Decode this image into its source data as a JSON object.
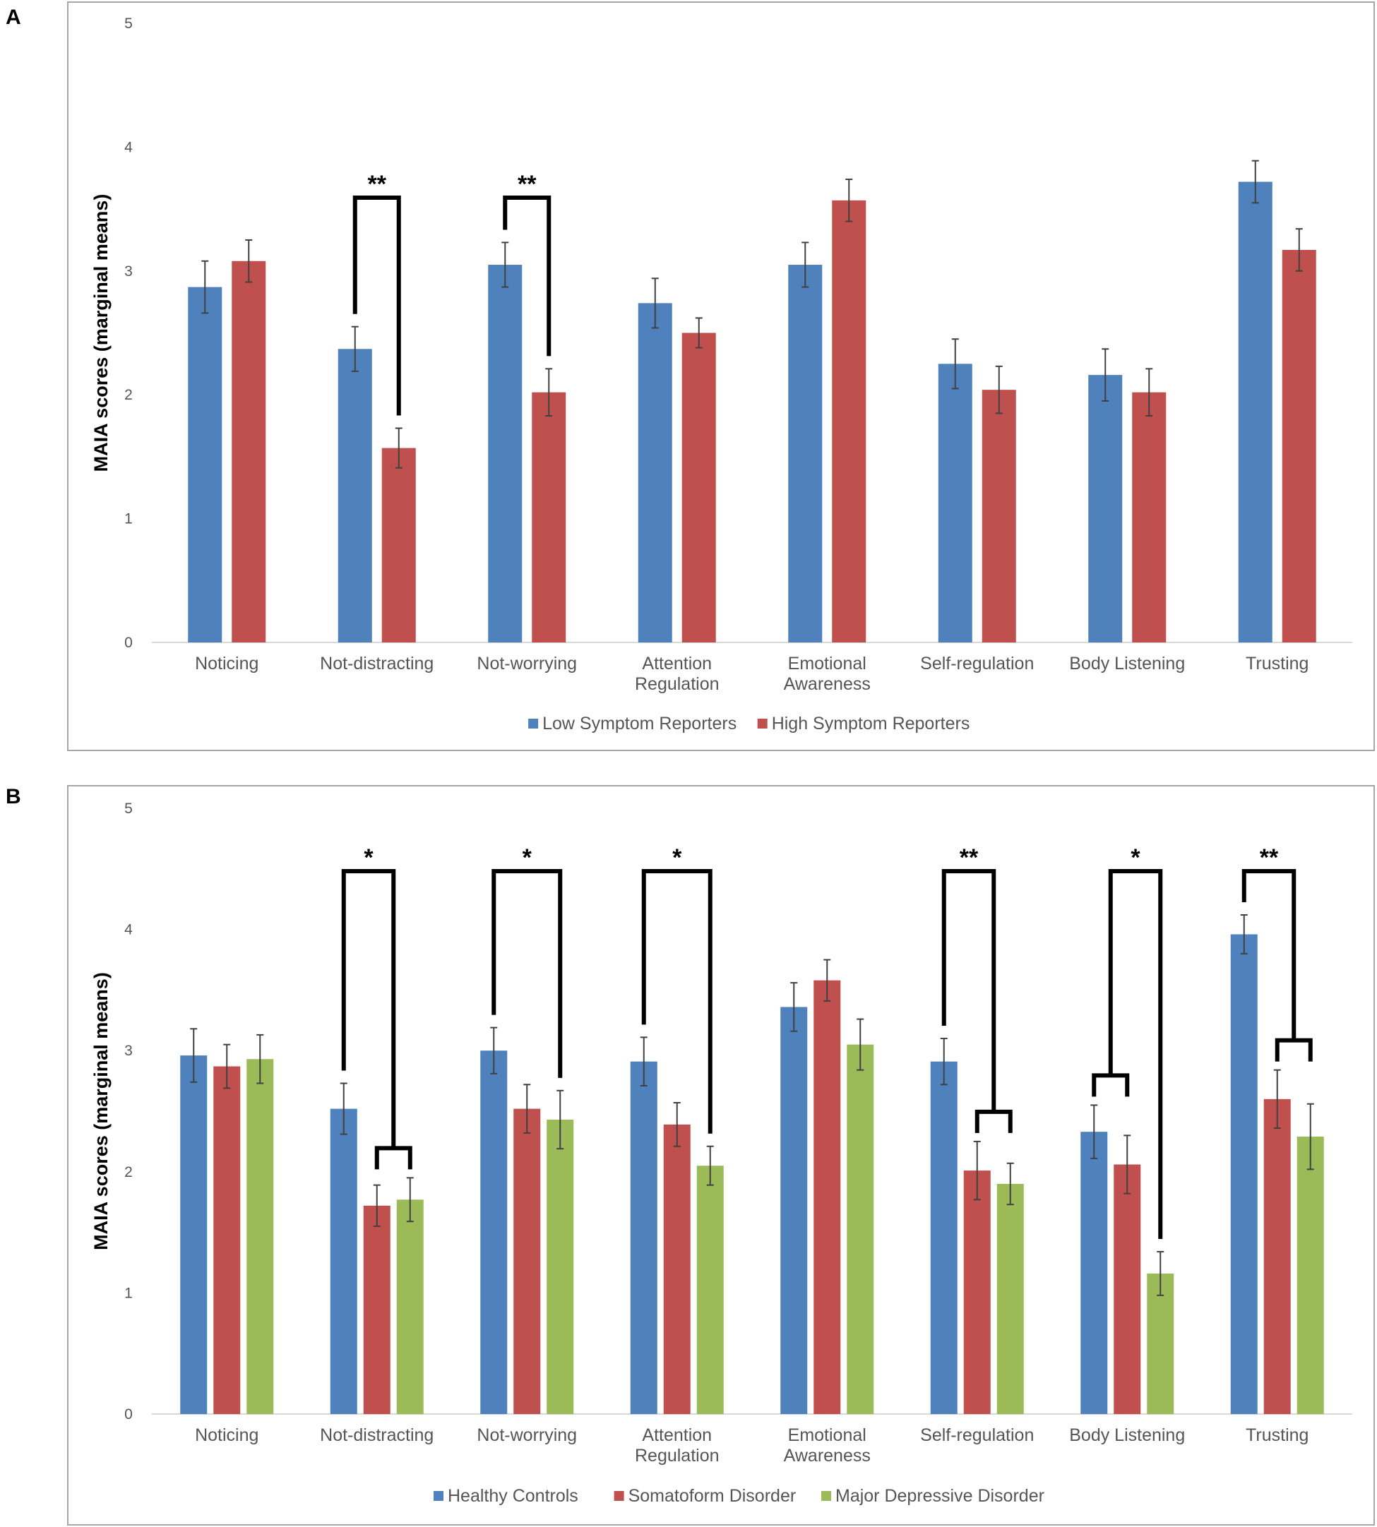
{
  "panels": [
    {
      "label": "A",
      "chart_data": {
        "type": "bar",
        "ylabel": "MAIA scores (marginal means)",
        "ylim": [
          0,
          5
        ],
        "yticks": [
          0,
          1,
          2,
          3,
          4,
          5
        ],
        "categories": [
          [
            "Noticing"
          ],
          [
            "Not-distracting"
          ],
          [
            "Not-worrying"
          ],
          [
            "Attention",
            "Regulation"
          ],
          [
            "Emotional",
            "Awareness"
          ],
          [
            "Self-regulation"
          ],
          [
            "Body Listening"
          ],
          [
            "Trusting"
          ]
        ],
        "series": [
          {
            "name": "Low Symptom Reporters",
            "color": "#4f81bd",
            "values": [
              2.87,
              2.37,
              3.05,
              2.74,
              3.05,
              2.25,
              2.16,
              3.72
            ],
            "errors": [
              0.21,
              0.18,
              0.18,
              0.2,
              0.18,
              0.2,
              0.21,
              0.17
            ]
          },
          {
            "name": "High Symptom Reporters",
            "color": "#c0504d",
            "values": [
              3.08,
              1.57,
              2.02,
              2.5,
              3.57,
              2.04,
              2.02,
              3.17
            ],
            "errors": [
              0.17,
              0.16,
              0.19,
              0.12,
              0.17,
              0.19,
              0.19,
              0.17
            ]
          }
        ],
        "annotations": [
          {
            "category": 1,
            "label": "**",
            "from": 0,
            "to": 1
          },
          {
            "category": 2,
            "label": "**",
            "from": 0,
            "to": 1
          }
        ]
      }
    },
    {
      "label": "B",
      "chart_data": {
        "type": "bar",
        "ylabel": "MAIA scores (marginal means)",
        "ylim": [
          0,
          5
        ],
        "yticks": [
          0,
          1,
          2,
          3,
          4,
          5
        ],
        "categories": [
          [
            "Noticing"
          ],
          [
            "Not-distracting"
          ],
          [
            "Not-worrying"
          ],
          [
            "Attention",
            "Regulation"
          ],
          [
            "Emotional",
            "Awareness"
          ],
          [
            "Self-regulation"
          ],
          [
            "Body Listening"
          ],
          [
            "Trusting"
          ]
        ],
        "series": [
          {
            "name": "Healthy Controls",
            "color": "#4f81bd",
            "values": [
              2.96,
              2.52,
              3.0,
              2.91,
              3.36,
              2.91,
              2.33,
              3.96
            ],
            "errors": [
              0.22,
              0.21,
              0.19,
              0.2,
              0.2,
              0.19,
              0.22,
              0.16
            ]
          },
          {
            "name": "Somatoform Disorder",
            "color": "#c0504d",
            "values": [
              2.87,
              1.72,
              2.52,
              2.39,
              3.58,
              2.01,
              2.06,
              2.6
            ],
            "errors": [
              0.18,
              0.17,
              0.2,
              0.18,
              0.17,
              0.24,
              0.24,
              0.24
            ]
          },
          {
            "name": "Major Depressive Disorder",
            "color": "#9bbb59",
            "values": [
              2.93,
              1.77,
              2.43,
              2.05,
              3.05,
              1.9,
              1.16,
              2.29
            ],
            "errors": [
              0.2,
              0.18,
              0.24,
              0.16,
              0.21,
              0.17,
              0.18,
              0.27
            ]
          }
        ],
        "annotations": [
          {
            "category": 1,
            "label": "*",
            "from": 0,
            "to": [
              1,
              2
            ]
          },
          {
            "category": 2,
            "label": "*",
            "from": 0,
            "to": 2
          },
          {
            "category": 3,
            "label": "*",
            "from": 0,
            "to": 2
          },
          {
            "category": 5,
            "label": "**",
            "from": 0,
            "to": [
              1,
              2
            ]
          },
          {
            "category": 6,
            "label": "*",
            "from": [
              0,
              1
            ],
            "to": 2
          },
          {
            "category": 7,
            "label": "**",
            "from": 0,
            "to": [
              1,
              2
            ]
          }
        ]
      }
    }
  ]
}
